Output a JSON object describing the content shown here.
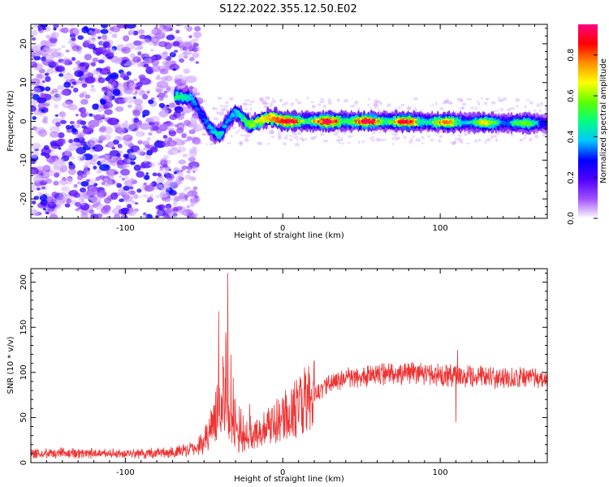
{
  "figure_title": "S122.2022.355.12.50.E02",
  "chart_data": [
    {
      "type": "heatmap",
      "title": "",
      "xlabel": "Height of straight line (km)",
      "ylabel": "Frequency (Hz)",
      "xlim": [
        -160,
        168
      ],
      "ylim": [
        -25,
        25
      ],
      "xticks": [
        -100,
        0,
        100
      ],
      "yticks": [
        -20,
        -10,
        0,
        10,
        20
      ],
      "colorbar": {
        "label": "Normalized spectral amplitude",
        "range": [
          0,
          0.95
        ],
        "ticks": [
          0.0,
          0.2,
          0.4,
          0.6,
          0.8
        ],
        "colormap": [
          "#ffffff",
          "#a050ff",
          "#5000ff",
          "#0000ff",
          "#00c8ff",
          "#00ff80",
          "#60ff00",
          "#ffff00",
          "#ff9000",
          "#ff0000",
          "#ff0080"
        ]
      },
      "noise_region_x": [
        -160,
        -58
      ],
      "ridge": [
        {
          "x": -65,
          "f": 6.5,
          "a": 0.45
        },
        {
          "x": -58,
          "f": 6,
          "a": 0.35
        },
        {
          "x": -52,
          "f": 2,
          "a": 0.25
        },
        {
          "x": -45,
          "f": -2.5,
          "a": 0.35
        },
        {
          "x": -40,
          "f": -3.5,
          "a": 0.4
        },
        {
          "x": -35,
          "f": 0,
          "a": 0.3
        },
        {
          "x": -30,
          "f": 2.5,
          "a": 0.35
        },
        {
          "x": -25,
          "f": 0.5,
          "a": 0.45
        },
        {
          "x": -20,
          "f": -1,
          "a": 0.55
        },
        {
          "x": -15,
          "f": 0,
          "a": 0.6
        },
        {
          "x": -8,
          "f": 1,
          "a": 0.7
        },
        {
          "x": 0,
          "f": 0,
          "a": 0.8
        },
        {
          "x": 20,
          "f": 0,
          "a": 0.85
        },
        {
          "x": 60,
          "f": 0,
          "a": 0.85
        },
        {
          "x": 100,
          "f": -0.2,
          "a": 0.7
        },
        {
          "x": 140,
          "f": -0.4,
          "a": 0.55
        },
        {
          "x": 168,
          "f": -0.5,
          "a": 0.45
        }
      ]
    },
    {
      "type": "line",
      "title": "",
      "xlabel": "Height of straight line (km)",
      "ylabel": "SNR (10 * v/v)",
      "xlim": [
        -160,
        168
      ],
      "ylim": [
        0,
        215
      ],
      "xticks": [
        -100,
        0,
        100
      ],
      "yticks": [
        0,
        50,
        100,
        150,
        200
      ],
      "series_color": "#ee3333",
      "envelope": [
        {
          "x": -160,
          "y": 11
        },
        {
          "x": -100,
          "y": 10
        },
        {
          "x": -70,
          "y": 11
        },
        {
          "x": -55,
          "y": 16
        },
        {
          "x": -48,
          "y": 28
        },
        {
          "x": -42,
          "y": 55
        },
        {
          "x": -38,
          "y": 80
        },
        {
          "x": -34,
          "y": 50
        },
        {
          "x": -30,
          "y": 30
        },
        {
          "x": -24,
          "y": 20
        },
        {
          "x": -15,
          "y": 35
        },
        {
          "x": -5,
          "y": 45
        },
        {
          "x": 5,
          "y": 55
        },
        {
          "x": 15,
          "y": 70
        },
        {
          "x": 25,
          "y": 82
        },
        {
          "x": 35,
          "y": 92
        },
        {
          "x": 50,
          "y": 95
        },
        {
          "x": 80,
          "y": 100
        },
        {
          "x": 110,
          "y": 96
        },
        {
          "x": 140,
          "y": 94
        },
        {
          "x": 168,
          "y": 93
        }
      ],
      "spikes": [
        {
          "x": -35,
          "y": 210
        },
        {
          "x": -36,
          "y": 135
        },
        {
          "x": -38,
          "y": 118
        },
        {
          "x": 110,
          "y": 45
        },
        {
          "x": 111,
          "y": 125
        }
      ]
    }
  ]
}
